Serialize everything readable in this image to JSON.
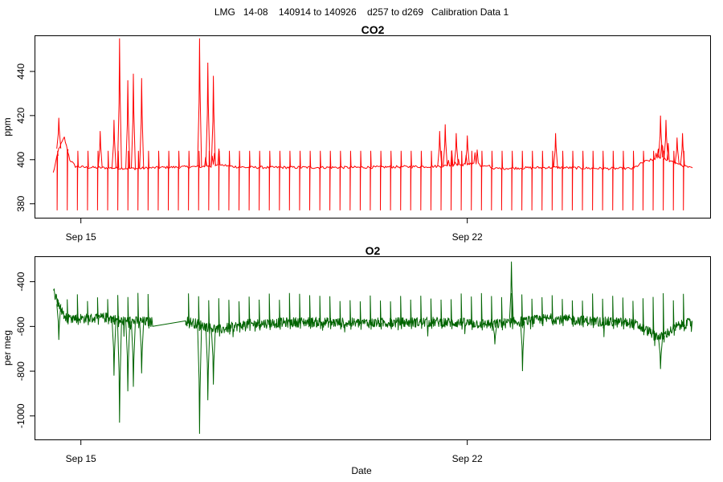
{
  "figure": {
    "title": "LMG   14-08    140914 to 140926    d257 to d269   Calibration Data 1",
    "xlabel": "Date"
  },
  "chart_data": [
    {
      "type": "line",
      "title": "CO2",
      "ylabel": "ppm",
      "xlim": [
        "2014-09-14T04:12",
        "2014-09-26T09:36"
      ],
      "ylim": [
        373.7,
        456.0
      ],
      "x_ticks": [
        {
          "date": "2014-09-15",
          "label": "Sep 15"
        },
        {
          "date": "2014-09-22",
          "label": "Sep 22"
        }
      ],
      "y_ticks": [
        380,
        400,
        420,
        440
      ],
      "grid": false,
      "series": [
        {
          "color": "#ff0000",
          "data_start": "2014-09-14T12:00",
          "data_end": "2014-09-26T02:00",
          "baseline": [
            [
              "2014-09-14T12:00",
              394
            ],
            [
              "2014-09-14T14:24",
              405
            ],
            [
              "2014-09-14T16:48",
              410
            ],
            [
              "2014-09-14T19:12",
              400
            ],
            [
              "2014-09-14T21:36",
              397
            ],
            [
              "2014-09-15T02:24",
              396.5
            ],
            [
              "2014-09-16T00:00",
              396
            ],
            [
              "2014-09-16T12:00",
              396.5
            ],
            [
              "2014-09-17T09:36",
              397
            ],
            [
              "2014-09-17T12:00",
              398
            ],
            [
              "2014-09-17T16:48",
              397
            ],
            [
              "2014-09-18T00:00",
              396.5
            ],
            [
              "2014-09-20T00:00",
              396.5
            ],
            [
              "2014-09-21T12:00",
              397
            ],
            [
              "2014-09-22T02:24",
              398
            ],
            [
              "2014-09-22T09:36",
              397
            ],
            [
              "2014-09-22T12:00",
              396
            ],
            [
              "2014-09-23T12:00",
              396.5
            ],
            [
              "2014-09-24T12:00",
              396
            ],
            [
              "2014-09-25T00:00",
              396
            ],
            [
              "2014-09-25T04:48",
              399
            ],
            [
              "2014-09-25T12:00",
              401
            ],
            [
              "2014-09-25T19:12",
              398
            ],
            [
              "2014-09-26T02:00",
              396
            ]
          ],
          "spikes": [
            [
              "2014-09-14T14:24",
              419
            ],
            [
              "2014-09-15T08:24",
              413
            ],
            [
              "2014-09-15T14:24",
              418
            ],
            [
              "2014-09-15T16:48",
              455
            ],
            [
              "2014-09-15T20:24",
              436
            ],
            [
              "2014-09-15T22:48",
              439
            ],
            [
              "2014-09-16T02:24",
              437
            ],
            [
              "2014-09-17T03:36",
              455
            ],
            [
              "2014-09-17T07:12",
              444
            ],
            [
              "2014-09-17T09:36",
              438
            ],
            [
              "2014-09-21T12:00",
              413
            ],
            [
              "2014-09-21T14:24",
              416
            ],
            [
              "2014-09-21T19:12",
              412
            ],
            [
              "2014-09-22T00:00",
              411
            ],
            [
              "2014-09-23T14:24",
              412
            ],
            [
              "2014-09-25T12:00",
              420
            ],
            [
              "2014-09-25T14:24",
              418
            ],
            [
              "2014-09-25T19:12",
              410
            ],
            [
              "2014-09-25T21:36",
              412
            ]
          ],
          "calibration_dips": {
            "value": 377,
            "cal_high": 404
          }
        }
      ]
    },
    {
      "type": "line",
      "title": "O2",
      "ylabel": "per meg",
      "xlim": [
        "2014-09-14T04:12",
        "2014-09-26T09:36"
      ],
      "ylim": [
        -1105,
        -290
      ],
      "x_ticks": [
        {
          "date": "2014-09-15",
          "label": "Sep 15"
        },
        {
          "date": "2014-09-22",
          "label": "Sep 22"
        }
      ],
      "y_ticks": [
        -1000,
        -800,
        -600,
        -400
      ],
      "grid": false,
      "series": [
        {
          "color": "#006400",
          "data_start": "2014-09-14T12:00",
          "data_end": "2014-09-26T02:00",
          "gap": [
            "2014-09-16T07:12",
            "2014-09-16T21:36"
          ],
          "baseline": [
            [
              "2014-09-14T12:00",
              -440
            ],
            [
              "2014-09-14T16:48",
              -560
            ],
            [
              "2014-09-15T02:24",
              -565
            ],
            [
              "2014-09-15T12:00",
              -560
            ],
            [
              "2014-09-15T16:48",
              -575
            ],
            [
              "2014-09-16T07:12",
              -580
            ],
            [
              "2014-09-16T21:36",
              -575
            ],
            [
              "2014-09-17T12:00",
              -615
            ],
            [
              "2014-09-18T00:00",
              -590
            ],
            [
              "2014-09-19T00:00",
              -580
            ],
            [
              "2014-09-20T00:00",
              -585
            ],
            [
              "2014-09-21T12:00",
              -580
            ],
            [
              "2014-09-22T12:00",
              -590
            ],
            [
              "2014-09-23T12:00",
              -565
            ],
            [
              "2014-09-24T12:00",
              -580
            ],
            [
              "2014-09-25T00:00",
              -585
            ],
            [
              "2014-09-25T12:00",
              -650
            ],
            [
              "2014-09-25T19:12",
              -600
            ],
            [
              "2014-09-26T02:00",
              -580
            ]
          ],
          "spikes_down": [
            [
              "2014-09-14T14:24",
              -660
            ],
            [
              "2014-09-15T14:24",
              -820
            ],
            [
              "2014-09-15T16:48",
              -1030
            ],
            [
              "2014-09-15T20:24",
              -890
            ],
            [
              "2014-09-15T22:48",
              -870
            ],
            [
              "2014-09-16T02:24",
              -810
            ],
            [
              "2014-09-17T03:36",
              -1080
            ],
            [
              "2014-09-17T07:12",
              -930
            ],
            [
              "2014-09-17T09:36",
              -860
            ],
            [
              "2014-09-22T12:00",
              -680
            ],
            [
              "2014-09-23T00:00",
              -800
            ],
            [
              "2014-09-25T12:00",
              -790
            ]
          ],
          "spikes_up": [
            [
              "2014-09-22T19:12",
              -310
            ]
          ],
          "calibration_peaks": {
            "value": -470
          }
        }
      ]
    }
  ]
}
